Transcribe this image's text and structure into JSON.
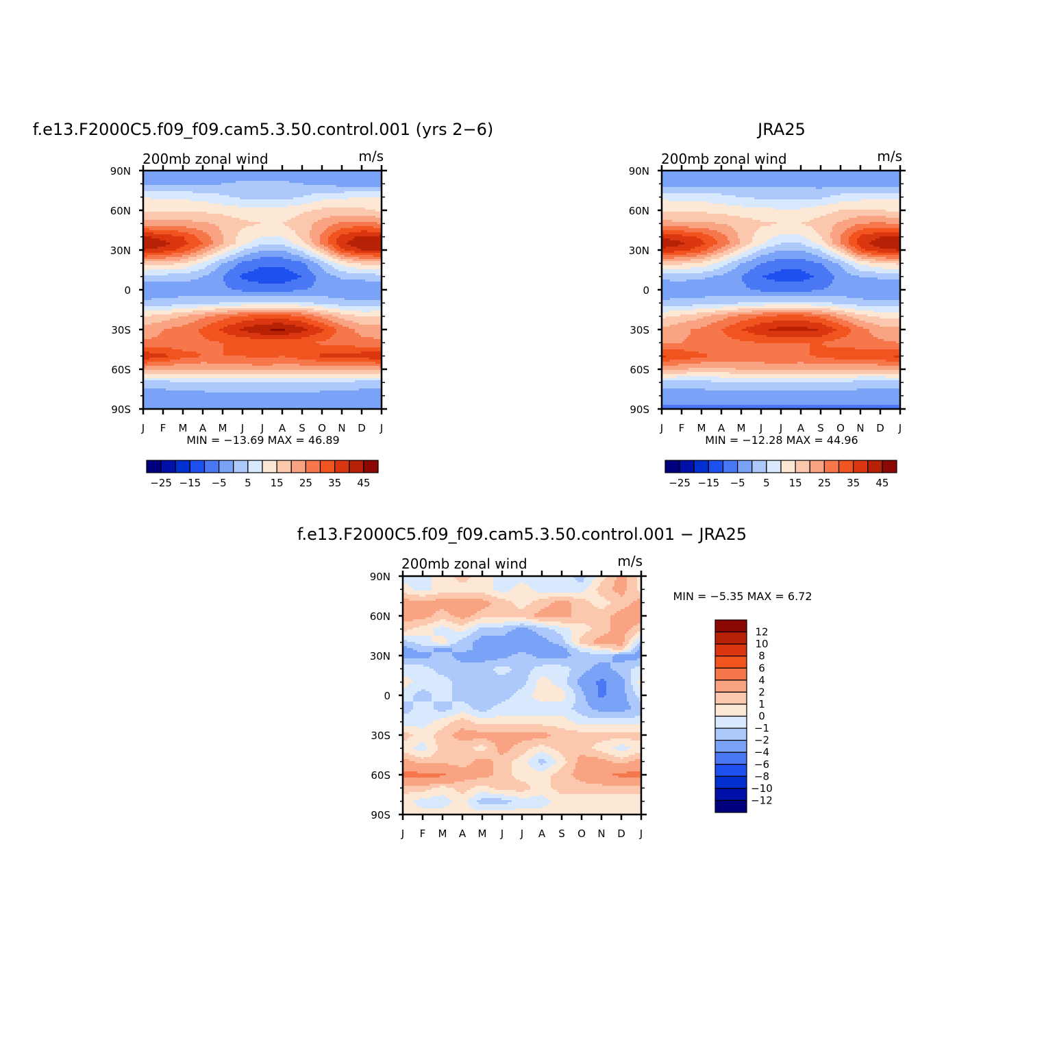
{
  "figure": {
    "panels": [
      {
        "id": "model",
        "title": "f.e13.F2000C5.f09_f09.cam5.3.50.control.001 (yrs 2−6)",
        "left_label": "200mb zonal wind",
        "right_label": "m/s",
        "stats": "MIN = −13.69 MAX =    46.89",
        "y_ticks": [
          "90N",
          "60N",
          "30N",
          "0",
          "30S",
          "60S",
          "90S"
        ],
        "x_ticks": [
          "J",
          "F",
          "M",
          "A",
          "M",
          "J",
          "J",
          "A",
          "S",
          "O",
          "N",
          "D",
          "J"
        ],
        "colorbar_ticks": [
          "−25",
          "−15",
          "−5",
          "5",
          "15",
          "25",
          "35",
          "45"
        ]
      },
      {
        "id": "obs",
        "title": "JRA25",
        "left_label": "200mb zonal wind",
        "right_label": "m/s",
        "stats": "MIN = −12.28 MAX =    44.96",
        "y_ticks": [
          "90N",
          "60N",
          "30N",
          "0",
          "30S",
          "60S",
          "90S"
        ],
        "x_ticks": [
          "J",
          "F",
          "M",
          "A",
          "M",
          "J",
          "J",
          "A",
          "S",
          "O",
          "N",
          "D",
          "J"
        ],
        "colorbar_ticks": [
          "−25",
          "−15",
          "−5",
          "5",
          "15",
          "25",
          "35",
          "45"
        ]
      },
      {
        "id": "diff",
        "title": "f.e13.F2000C5.f09_f09.cam5.3.50.control.001 − JRA25",
        "left_label": "200mb zonal wind",
        "right_label": "m/s",
        "stats": "MIN = −5.35 MAX =    6.72",
        "y_ticks": [
          "90N",
          "60N",
          "30N",
          "0",
          "30S",
          "60S",
          "90S"
        ],
        "x_ticks": [
          "J",
          "F",
          "M",
          "A",
          "M",
          "J",
          "J",
          "A",
          "S",
          "O",
          "N",
          "D",
          "J"
        ],
        "colorbar_ticks": [
          "12",
          "10",
          "8",
          "6",
          "4",
          "2",
          "1",
          "0",
          "−1",
          "−2",
          "−4",
          "−6",
          "−8",
          "−10",
          "−12"
        ]
      }
    ]
  },
  "chart_data": [
    {
      "type": "heatmap",
      "title": "f.e13.F2000C5.f09_f09.cam5.3.50.control.001 (yrs 2−6)",
      "xlabel": "",
      "ylabel": "",
      "x": [
        "J",
        "F",
        "M",
        "A",
        "M",
        "J",
        "J",
        "A",
        "S",
        "O",
        "N",
        "D",
        "J"
      ],
      "y_lat": [
        90,
        60,
        30,
        0,
        -30,
        -60,
        -90
      ],
      "units": "m/s",
      "min": -13.69,
      "max": 46.89,
      "levels": [
        -30,
        -25,
        -20,
        -15,
        -10,
        -5,
        0,
        5,
        10,
        15,
        20,
        25,
        30,
        35,
        40,
        45,
        50
      ],
      "colors": [
        "#00007f",
        "#0010a8",
        "#0030d0",
        "#1e50f0",
        "#4a78f5",
        "#7aa2f7",
        "#adc8fb",
        "#d8e8fd",
        "#fde8d6",
        "#fbc8ae",
        "#f9a383",
        "#f7774d",
        "#f2541f",
        "#da3710",
        "#b72106",
        "#8c0804"
      ],
      "grid_lat": [
        90,
        80,
        70,
        60,
        50,
        40,
        35,
        30,
        20,
        10,
        0,
        -10,
        -20,
        -30,
        -40,
        -50,
        -60,
        -70,
        -80,
        -90
      ],
      "values": [
        [
          -5,
          -5,
          -5,
          -4,
          -4,
          -4,
          -4,
          -4,
          -4,
          -5,
          -5,
          -5,
          -5
        ],
        [
          -2,
          -1,
          -1,
          -1,
          0,
          1,
          1,
          1,
          0,
          -1,
          -2,
          -2,
          -2
        ],
        [
          10,
          9,
          9,
          8,
          6,
          4,
          3,
          3,
          5,
          8,
          9,
          10,
          10
        ],
        [
          14,
          14,
          14,
          14,
          13,
          12,
          12,
          12,
          14,
          16,
          17,
          16,
          14
        ],
        [
          23,
          22,
          22,
          21,
          19,
          16,
          15,
          15,
          18,
          22,
          26,
          27,
          25
        ],
        [
          41,
          38,
          35,
          28,
          20,
          13,
          10,
          10,
          16,
          26,
          37,
          41,
          42
        ],
        [
          44,
          42,
          37,
          30,
          20,
          12,
          6,
          6,
          13,
          26,
          39,
          44,
          45
        ],
        [
          40,
          38,
          33,
          24,
          14,
          5,
          0,
          0,
          6,
          18,
          34,
          40,
          41
        ],
        [
          18,
          17,
          15,
          9,
          0,
          -6,
          -9,
          -9,
          -6,
          2,
          12,
          16,
          17
        ],
        [
          3,
          3,
          2,
          0,
          -5,
          -11,
          -13,
          -13,
          -10,
          -3,
          1,
          2,
          3
        ],
        [
          -5,
          -4,
          -3,
          -3,
          -4,
          -6,
          -7,
          -7,
          -5,
          -4,
          -4,
          -5,
          -5
        ],
        [
          2,
          2,
          3,
          4,
          5,
          6,
          6,
          6,
          6,
          4,
          2,
          1,
          2
        ],
        [
          15,
          17,
          20,
          24,
          28,
          31,
          33,
          33,
          30,
          24,
          18,
          15,
          15
        ],
        [
          22,
          25,
          27,
          31,
          36,
          41,
          45,
          46,
          42,
          36,
          28,
          23,
          22
        ],
        [
          26,
          26,
          27,
          29,
          30,
          31,
          31,
          31,
          31,
          29,
          28,
          27,
          26
        ],
        [
          39,
          37,
          32,
          30,
          30,
          30,
          32,
          30,
          33,
          36,
          36,
          38,
          39
        ],
        [
          22,
          21,
          20,
          20,
          21,
          22,
          22,
          22,
          21,
          21,
          21,
          21,
          22
        ],
        [
          3,
          3,
          4,
          4,
          5,
          5,
          5,
          5,
          5,
          4,
          4,
          3,
          3
        ],
        [
          -3,
          -3,
          -2,
          -2,
          -1,
          -1,
          -1,
          -1,
          -1,
          -2,
          -2,
          -3,
          -3
        ],
        [
          -5,
          -5,
          -5,
          -5,
          -5,
          -5,
          -5,
          -5,
          -5,
          -5,
          -5,
          -5,
          -5
        ]
      ]
    },
    {
      "type": "heatmap",
      "title": "JRA25",
      "xlabel": "",
      "ylabel": "",
      "x": [
        "J",
        "F",
        "M",
        "A",
        "M",
        "J",
        "J",
        "A",
        "S",
        "O",
        "N",
        "D",
        "J"
      ],
      "y_lat": [
        90,
        60,
        30,
        0,
        -30,
        -60,
        -90
      ],
      "units": "m/s",
      "min": -12.28,
      "max": 44.96,
      "levels": [
        -30,
        -25,
        -20,
        -15,
        -10,
        -5,
        0,
        5,
        10,
        15,
        20,
        25,
        30,
        35,
        40,
        45,
        50
      ],
      "colors": [
        "#00007f",
        "#0010a8",
        "#0030d0",
        "#1e50f0",
        "#4a78f5",
        "#7aa2f7",
        "#adc8fb",
        "#d8e8fd",
        "#fde8d6",
        "#fbc8ae",
        "#f9a383",
        "#f7774d",
        "#f2541f",
        "#da3710",
        "#b72106",
        "#8c0804"
      ],
      "grid_lat": [
        90,
        80,
        70,
        60,
        50,
        40,
        35,
        30,
        20,
        10,
        0,
        -10,
        -20,
        -30,
        -40,
        -50,
        -60,
        -70,
        -80,
        -90
      ],
      "values": [
        [
          -5,
          -5,
          -5,
          -5,
          -5,
          -5,
          -5,
          -5,
          -5,
          -5,
          -5,
          -5,
          -5
        ],
        [
          -3,
          -3,
          -2,
          -2,
          -2,
          -1,
          -1,
          -1,
          -2,
          -2,
          -3,
          -3,
          -3
        ],
        [
          9,
          8,
          8,
          7,
          5,
          4,
          3,
          3,
          4,
          7,
          8,
          9,
          9
        ],
        [
          14,
          14,
          14,
          13,
          12,
          11,
          11,
          11,
          13,
          15,
          16,
          15,
          14
        ],
        [
          22,
          21,
          21,
          20,
          18,
          16,
          15,
          15,
          17,
          21,
          25,
          26,
          24
        ],
        [
          40,
          37,
          34,
          27,
          19,
          12,
          9,
          9,
          15,
          25,
          36,
          40,
          41
        ],
        [
          43,
          41,
          36,
          29,
          19,
          11,
          5,
          5,
          12,
          25,
          38,
          43,
          44
        ],
        [
          39,
          37,
          32,
          23,
          13,
          4,
          0,
          0,
          5,
          17,
          33,
          39,
          40
        ],
        [
          17,
          16,
          14,
          8,
          0,
          -5,
          -8,
          -8,
          -5,
          1,
          11,
          15,
          16
        ],
        [
          2,
          2,
          1,
          -1,
          -5,
          -10,
          -12,
          -12,
          -9,
          -3,
          0,
          1,
          2
        ],
        [
          -5,
          -4,
          -4,
          -3,
          -4,
          -6,
          -7,
          -7,
          -5,
          -4,
          -4,
          -5,
          -5
        ],
        [
          2,
          2,
          3,
          4,
          5,
          6,
          6,
          6,
          6,
          4,
          2,
          1,
          2
        ],
        [
          14,
          16,
          19,
          23,
          27,
          30,
          32,
          32,
          29,
          23,
          17,
          14,
          14
        ],
        [
          21,
          24,
          26,
          30,
          35,
          39,
          42,
          42,
          40,
          34,
          27,
          22,
          21
        ],
        [
          25,
          25,
          26,
          28,
          29,
          30,
          30,
          30,
          30,
          28,
          27,
          26,
          25
        ],
        [
          36,
          34,
          31,
          29,
          29,
          29,
          30,
          29,
          31,
          33,
          34,
          35,
          36
        ],
        [
          21,
          20,
          19,
          19,
          20,
          21,
          21,
          21,
          20,
          20,
          20,
          20,
          21
        ],
        [
          3,
          3,
          3,
          4,
          4,
          4,
          4,
          4,
          4,
          4,
          3,
          3,
          3
        ],
        [
          -3,
          -3,
          -3,
          -2,
          -2,
          -2,
          -2,
          -2,
          -2,
          -2,
          -3,
          -3,
          -3
        ],
        [
          -6,
          -6,
          -6,
          -6,
          -6,
          -6,
          -6,
          -6,
          -6,
          -6,
          -6,
          -6,
          -6
        ]
      ]
    },
    {
      "type": "heatmap",
      "title": "f.e13.F2000C5.f09_f09.cam5.3.50.control.001 − JRA25",
      "xlabel": "",
      "ylabel": "",
      "x": [
        "J",
        "F",
        "M",
        "A",
        "M",
        "J",
        "J",
        "A",
        "S",
        "O",
        "N",
        "D",
        "J"
      ],
      "y_lat": [
        90,
        60,
        30,
        0,
        -30,
        -60,
        -90
      ],
      "units": "m/s",
      "min": -5.35,
      "max": 6.72,
      "levels": [
        -14,
        -12,
        -10,
        -8,
        -6,
        -4,
        -2,
        -1,
        0,
        1,
        2,
        4,
        6,
        8,
        10,
        12,
        14
      ],
      "colors": [
        "#00007f",
        "#0010a8",
        "#0030d0",
        "#1e50f0",
        "#4a78f5",
        "#7aa2f7",
        "#adc8fb",
        "#d8e8fd",
        "#fde8d6",
        "#fbc8ae",
        "#f9a383",
        "#f7774d",
        "#f2541f",
        "#da3710",
        "#b72106",
        "#8c0804"
      ],
      "grid_lat": [
        90,
        80,
        70,
        60,
        50,
        40,
        35,
        30,
        20,
        10,
        0,
        -10,
        -20,
        -30,
        -40,
        -50,
        -60,
        -70,
        -80,
        -90
      ],
      "values": [
        [
          -0.5,
          -0.5,
          0.5,
          1.5,
          0.5,
          -0.5,
          -0.5,
          -0.5,
          -0.5,
          -1.5,
          0.5,
          2.5,
          0.5
        ],
        [
          0.5,
          -0.5,
          0.5,
          0.5,
          0.5,
          -0.5,
          0.5,
          -0.5,
          -0.5,
          -0.5,
          1.5,
          2.5,
          0.5
        ],
        [
          2.5,
          2.5,
          2.5,
          2.5,
          2.5,
          1.5,
          0.5,
          1.5,
          2.5,
          1.5,
          0.5,
          1.5,
          2.5
        ],
        [
          2.5,
          2.5,
          1.5,
          2.5,
          1.5,
          1.5,
          1.5,
          2.5,
          2.5,
          1.5,
          1.5,
          2.5,
          2.5
        ],
        [
          1.5,
          0.5,
          -0.5,
          0.5,
          -1.5,
          -1.5,
          -2.5,
          -1.5,
          -0.5,
          0.5,
          1.5,
          2.5,
          1.5
        ],
        [
          -1.5,
          -0.5,
          0.5,
          -1.5,
          -2.5,
          -2.5,
          -2.5,
          -2.5,
          -1.5,
          1.5,
          2.5,
          2.5,
          -1.5
        ],
        [
          -2.5,
          -1.5,
          -2.5,
          -1.5,
          -2.5,
          -2.5,
          -2.5,
          -2.5,
          -2.5,
          -0.5,
          0.5,
          1.5,
          -2.5
        ],
        [
          -2.5,
          -2.5,
          -1.5,
          -2.5,
          -2.5,
          -2.5,
          -1.5,
          -2.5,
          -2.5,
          -1.5,
          -1.5,
          -2.5,
          -2.5
        ],
        [
          -0.5,
          -0.5,
          -1.5,
          -1.5,
          -1.5,
          -0.5,
          -1.5,
          -0.5,
          -0.5,
          -1.5,
          -2.5,
          -1.5,
          -0.5
        ],
        [
          0.5,
          -0.5,
          -0.5,
          -1.5,
          -1.5,
          -1.5,
          -1.5,
          0.5,
          -0.5,
          -2.5,
          -4.5,
          -2.5,
          0.5
        ],
        [
          -0.5,
          -1.5,
          -0.5,
          -1.5,
          -1.5,
          -1.5,
          -0.5,
          0.5,
          0.5,
          -1.5,
          -4.5,
          -2.5,
          -0.5
        ],
        [
          -1.5,
          -0.5,
          -1.5,
          -0.5,
          -1.5,
          -0.5,
          -0.5,
          -0.5,
          -0.5,
          -1.5,
          -2.5,
          -2.5,
          -1.5
        ],
        [
          -0.5,
          -0.5,
          0.5,
          1.5,
          0.5,
          0.5,
          0.5,
          0.5,
          0.5,
          -0.5,
          -0.5,
          -0.5,
          -0.5
        ],
        [
          1.5,
          0.5,
          1.5,
          2.5,
          2.5,
          2.5,
          2.5,
          2.5,
          1.5,
          1.5,
          1.5,
          1.5,
          1.5
        ],
        [
          0.5,
          -0.5,
          1.5,
          1.5,
          0.5,
          2.5,
          1.5,
          0.5,
          1.5,
          1.5,
          0.5,
          -0.5,
          0.5
        ],
        [
          2.5,
          1.5,
          1.5,
          1.5,
          2.5,
          1.5,
          0.5,
          -1.5,
          0.5,
          2.5,
          2.5,
          1.5,
          2.5
        ],
        [
          4.5,
          4.5,
          4.5,
          2.5,
          2.5,
          1.5,
          0.5,
          0.5,
          1.5,
          2.5,
          3.5,
          4.5,
          4.5
        ],
        [
          1.5,
          1.5,
          0.5,
          1.5,
          0.5,
          1.5,
          1.5,
          0.5,
          1.5,
          1.5,
          1.5,
          1.5,
          1.5
        ],
        [
          0.5,
          -0.5,
          -0.5,
          0.5,
          -1.5,
          -1.5,
          -0.5,
          -0.5,
          0.5,
          0.5,
          0.5,
          0.5,
          0.5
        ],
        [
          0.5,
          0.5,
          0.5,
          0.5,
          0.5,
          0.5,
          0.5,
          0.5,
          0.5,
          0.5,
          0.5,
          0.5,
          0.5
        ]
      ]
    }
  ]
}
